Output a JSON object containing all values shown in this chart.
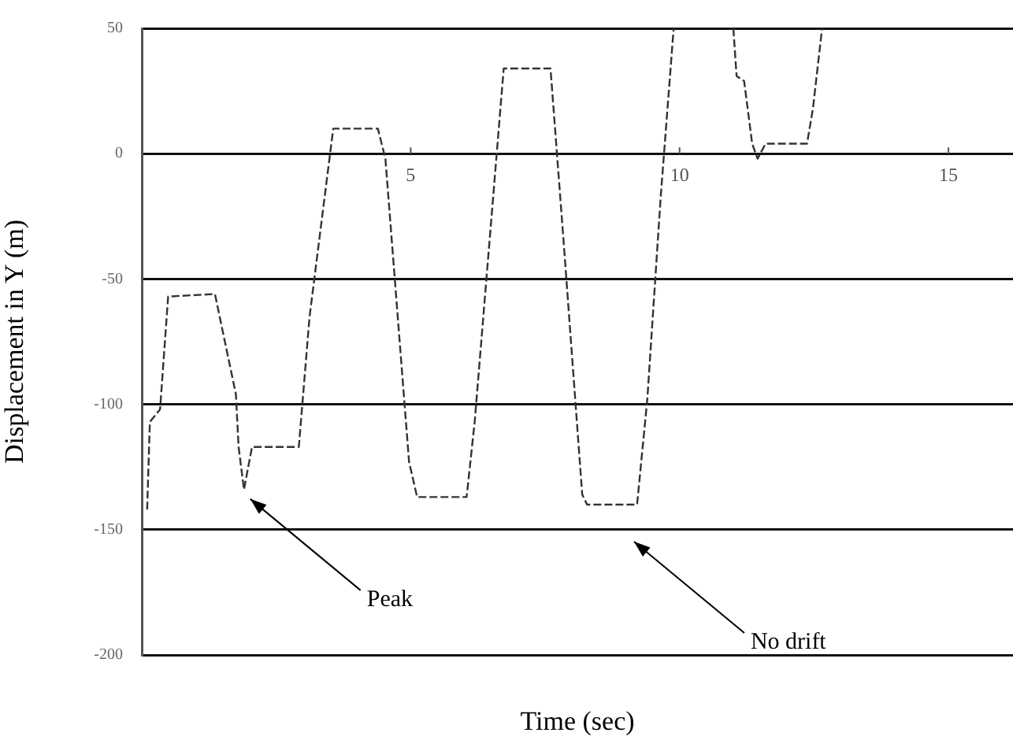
{
  "chart_data": {
    "type": "line",
    "xlabel": "Time (sec)",
    "ylabel": "Displacement in Y (m)",
    "x": [
      0.1,
      0.15,
      0.34,
      0.49,
      1.36,
      1.75,
      1.8,
      1.9,
      2.05,
      2.92,
      3.12,
      3.56,
      4.39,
      4.53,
      4.97,
      5.12,
      6.04,
      6.19,
      6.73,
      7.6,
      7.84,
      8.19,
      8.28,
      9.21,
      9.4,
      9.65,
      9.89,
      10.5,
      11.0,
      11.06,
      11.2,
      11.35,
      11.45,
      11.6,
      12.37,
      12.48,
      12.65
    ],
    "series": [
      {
        "color": "#333333",
        "values": [
          -142,
          -107,
          -102,
          -57,
          -56,
          -96,
          -117,
          -134,
          -117,
          -117,
          -65,
          10,
          10,
          -2,
          -123,
          -137,
          -137,
          -107,
          34,
          34,
          -34,
          -136,
          -140,
          -140,
          -98,
          -17,
          50,
          null,
          50,
          31,
          29,
          4,
          -2,
          4,
          4,
          18,
          50
        ]
      }
    ],
    "xlim": [
      0,
      16.2
    ],
    "xticks": [
      5,
      10,
      15
    ],
    "ylim": [
      -200,
      50
    ],
    "yticks": [
      -200,
      -150,
      -100,
      -50,
      0,
      50
    ],
    "grid": "y",
    "legend": false,
    "marker": "none",
    "line_style": "dashed",
    "annotations": [
      {
        "text": "Peak",
        "x": 1.9,
        "y": -134
      },
      "No drift"
    ]
  }
}
